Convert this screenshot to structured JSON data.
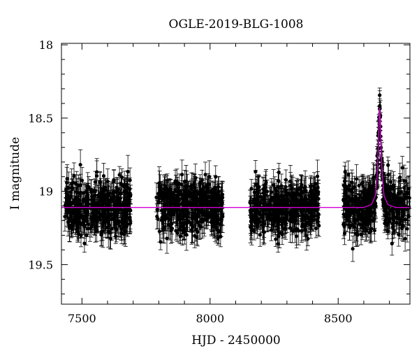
{
  "chart_data": {
    "type": "scatter",
    "title": "OGLE-2019-BLG-1008",
    "xlabel": "HJD - 2450000",
    "ylabel": "I magnitude",
    "xlim": [
      7420,
      8780
    ],
    "ylim": [
      19.77,
      17.99
    ],
    "y_inverted": true,
    "xticks": [
      7500,
      8000,
      8500
    ],
    "yticks": [
      18,
      18.5,
      19,
      19.5
    ],
    "xtick_labels": [
      "7500",
      "8000",
      "8500"
    ],
    "ytick_labels": [
      "18",
      "18.5",
      "19",
      "19.5"
    ],
    "grid": false,
    "legend": "none",
    "colors": {
      "points": "#000000",
      "model": "#d400d4",
      "frame": "#000000"
    },
    "model": {
      "baseline_mag": 19.11,
      "peak_mag": 18.43,
      "peak_time": 8662,
      "x": [
        7420,
        8600,
        8630,
        8645,
        8652,
        8657,
        8660,
        8662,
        8664,
        8667,
        8672,
        8679,
        8694,
        8724,
        8780
      ],
      "y": [
        19.11,
        19.11,
        19.09,
        19.03,
        18.9,
        18.68,
        18.5,
        18.43,
        18.5,
        18.68,
        18.9,
        19.03,
        19.09,
        19.11,
        19.11
      ]
    },
    "observations": {
      "seasons": [
        {
          "start": 7432,
          "end": 7690
        },
        {
          "start": 7790,
          "end": 8050
        },
        {
          "start": 8155,
          "end": 8425
        },
        {
          "start": 8520,
          "end": 8778
        }
      ],
      "baseline_mag": 19.11,
      "scatter_mag": 0.13,
      "typical_error_mag": 0.08
    }
  }
}
